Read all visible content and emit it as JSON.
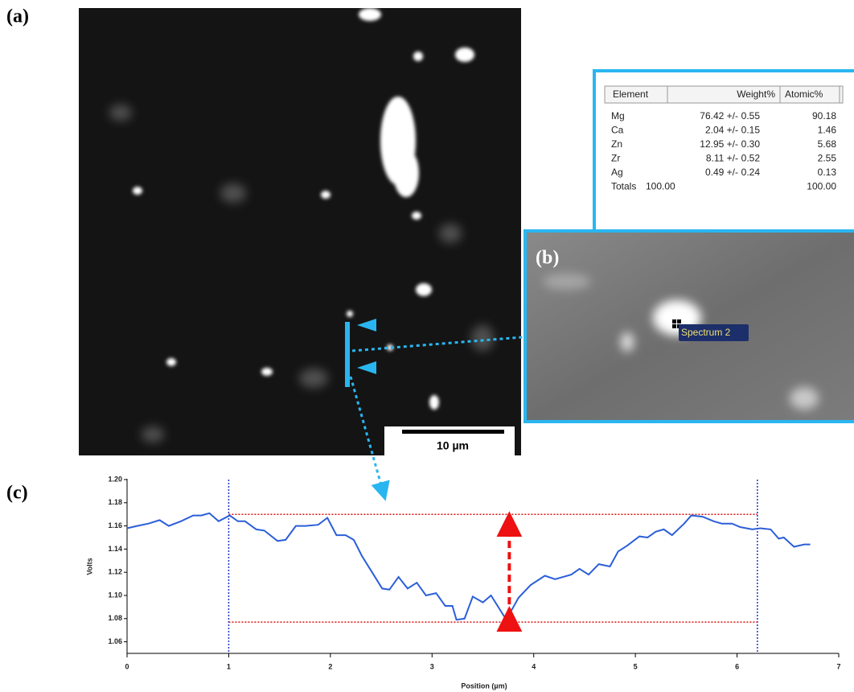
{
  "panel_labels": [
    "(a)",
    "(b)",
    "(c)"
  ],
  "scale_bar": "10 µm",
  "spectrum_label": "Spectrum 2",
  "table": {
    "headers": [
      "Element",
      "Weight%",
      "Atomic%"
    ],
    "rows": [
      {
        "element": "Mg",
        "weight": "76.42 +/-",
        "error": "0.55",
        "atomic": "90.18"
      },
      {
        "element": "Ca",
        "weight": "2.04 +/-",
        "error": "0.15",
        "atomic": "1.46"
      },
      {
        "element": "Zn",
        "weight": "12.95 +/-",
        "error": "0.30",
        "atomic": "5.68"
      },
      {
        "element": "Zr",
        "weight": "8.11 +/-",
        "error": "0.52",
        "atomic": "2.55"
      },
      {
        "element": "Ag",
        "weight": "0.49 +/-",
        "error": "0.24",
        "atomic": "0.13"
      },
      {
        "element": "Totals",
        "weight": "100.00",
        "atomic": "100.00"
      }
    ]
  },
  "chart_data": {
    "type": "line",
    "x_label": "Position (µm)",
    "y_label": "Volts",
    "x": [
      0,
      0.1,
      0.21,
      0.32,
      0.41,
      0.53,
      0.65,
      0.73,
      0.81,
      0.9,
      1.01,
      1.09,
      1.16,
      1.27,
      1.35,
      1.48,
      1.56,
      1.66,
      1.76,
      1.88,
      1.97,
      2.06,
      2.15,
      2.23,
      2.31,
      2.41,
      2.51,
      2.58,
      2.67,
      2.76,
      2.85,
      2.94,
      3.04,
      3.13,
      3.2,
      3.24,
      3.32,
      3.4,
      3.5,
      3.58,
      3.73,
      3.85,
      3.97,
      4.11,
      4.21,
      4.37,
      4.45,
      4.54,
      4.64,
      4.75,
      4.83,
      4.92,
      5.04,
      5.12,
      5.2,
      5.28,
      5.36,
      5.48,
      5.55,
      5.66,
      5.77,
      5.85,
      5.95,
      6.03,
      6.15,
      6.23,
      6.33,
      6.41,
      6.46,
      6.56,
      6.66,
      6.72
    ],
    "values": [
      1.158,
      1.16,
      1.162,
      1.165,
      1.16,
      1.164,
      1.169,
      1.169,
      1.171,
      1.164,
      1.169,
      1.164,
      1.164,
      1.157,
      1.156,
      1.147,
      1.148,
      1.16,
      1.16,
      1.161,
      1.167,
      1.152,
      1.152,
      1.148,
      1.134,
      1.12,
      1.106,
      1.105,
      1.116,
      1.106,
      1.111,
      1.1,
      1.102,
      1.091,
      1.091,
      1.079,
      1.08,
      1.099,
      1.094,
      1.1,
      1.079,
      1.098,
      1.109,
      1.117,
      1.114,
      1.118,
      1.123,
      1.118,
      1.127,
      1.125,
      1.138,
      1.143,
      1.151,
      1.15,
      1.155,
      1.157,
      1.152,
      1.162,
      1.169,
      1.168,
      1.164,
      1.162,
      1.162,
      1.159,
      1.157,
      1.158,
      1.157,
      1.149,
      1.15,
      1.142,
      1.144,
      1.144
    ],
    "color": "#2b5fd9",
    "xlim": [
      0,
      7
    ],
    "xticks": [
      0,
      1,
      2,
      3,
      4,
      5,
      6,
      7
    ],
    "ylim": [
      1.05,
      1.2
    ],
    "yticks": [
      1.06,
      1.08,
      {
        "value": 1.1,
        "label": "1.10"
      },
      1.12,
      1.14,
      1.16,
      1.18,
      {
        "value": 1.2,
        "label": "1.20"
      }
    ],
    "vlines": [
      1.0,
      6.2
    ],
    "vline_color": "#2233cc",
    "hlines": [
      1.17,
      1.077
    ],
    "hline_color": "#dd1111",
    "arrow_x": 3.76,
    "arrow": [
      1.077,
      1.17
    ],
    "arrow_color": "#ee1111"
  }
}
